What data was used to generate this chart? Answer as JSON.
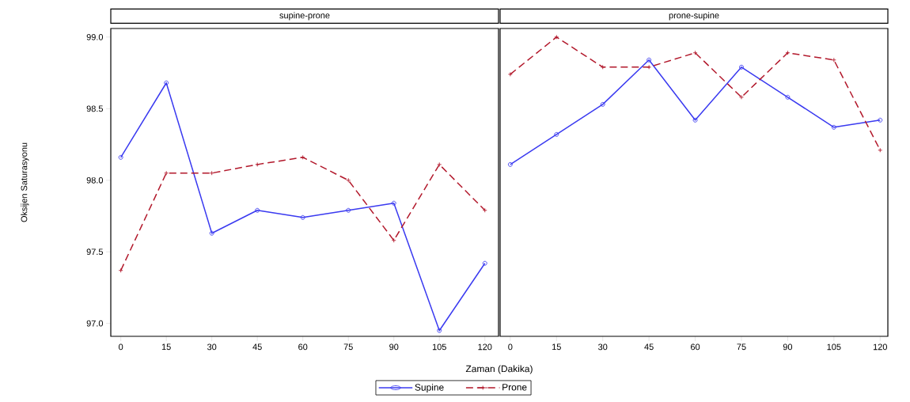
{
  "chart_data": [
    {
      "type": "line",
      "title": "supine-prone",
      "xlabel": "Zaman (Dakika)",
      "ylabel": "Oksijen Saturasyonu",
      "x": [
        0,
        15,
        30,
        45,
        60,
        75,
        90,
        105,
        120
      ],
      "xlim": [
        -3.3,
        124.5
      ],
      "xticks": [
        0,
        15,
        30,
        45,
        60,
        75,
        90,
        105,
        120
      ],
      "ylim": [
        96.91,
        99.06
      ],
      "yticks": [
        {
          "value": 97.0,
          "label": "97.0"
        },
        {
          "value": 97.5,
          "label": "97.5"
        },
        {
          "value": 98.0,
          "label": "98.0"
        },
        {
          "value": 98.5,
          "label": "98.5"
        },
        {
          "value": 99.0,
          "label": "99.0"
        }
      ],
      "legend": "bottom",
      "grid": false,
      "series": [
        {
          "name": "Supine",
          "color": "#3a3af0",
          "marker": "circle",
          "line_style": "solid",
          "values": [
            98.16,
            98.68,
            97.63,
            97.79,
            97.74,
            97.79,
            97.84,
            96.95,
            97.42
          ]
        },
        {
          "name": "Prone",
          "color": "#b2182b",
          "marker": "cross",
          "line_style": "dashed",
          "values": [
            97.37,
            98.05,
            98.05,
            98.11,
            98.16,
            98.0,
            97.58,
            98.11,
            97.79
          ]
        }
      ]
    },
    {
      "type": "line",
      "title": "prone-supine",
      "x": [
        0,
        15,
        30,
        45,
        60,
        75,
        90,
        105,
        120
      ],
      "xlim": [
        -3.3,
        122.5
      ],
      "xticks": [
        0,
        15,
        30,
        45,
        60,
        75,
        90,
        105,
        120
      ],
      "ylim": [
        96.91,
        99.06
      ],
      "tick_labels": "x",
      "grid": false,
      "series": [
        {
          "color": "#3a3af0",
          "marker": "circle",
          "line_style": "solid",
          "values": [
            98.11,
            98.32,
            98.53,
            98.84,
            98.42,
            98.79,
            98.58,
            98.37,
            98.42
          ]
        },
        {
          "color": "#b2182b",
          "marker": "cross",
          "line_style": "dashed",
          "values": [
            98.74,
            99.0,
            98.79,
            98.79,
            98.89,
            98.58,
            98.89,
            98.84,
            98.21
          ]
        }
      ]
    }
  ]
}
